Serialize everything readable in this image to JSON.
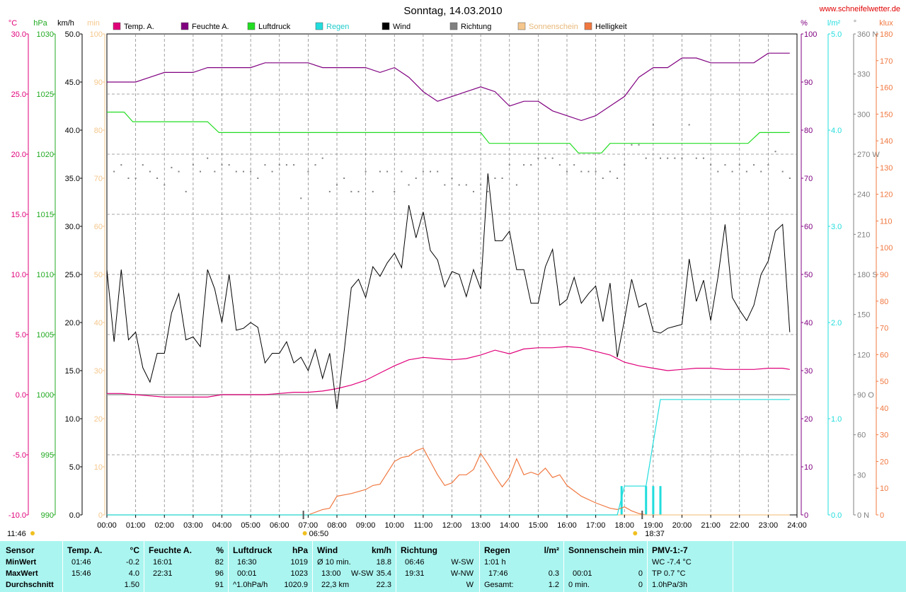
{
  "page": {
    "title": "Sonntag, 14.03.2010",
    "website": "www.schneifelwetter.de"
  },
  "legend": [
    {
      "label": "Temp. A.",
      "color": "#e0007a"
    },
    {
      "label": "Feuchte A.",
      "color": "#800080"
    },
    {
      "label": "Luftdruck",
      "color": "#22dd22"
    },
    {
      "label": "Regen",
      "color": "#22dddd"
    },
    {
      "label": "Wind",
      "color": "#000000"
    },
    {
      "label": "Richtung",
      "color": "#808080"
    },
    {
      "label": "Sonnenschein",
      "color": "#f5c78c"
    },
    {
      "label": "Helligkeit",
      "color": "#f07840"
    }
  ],
  "axes": {
    "temp": {
      "unit": "°C",
      "color": "#e0007a",
      "ticks": [
        "30.0",
        "25.0",
        "20.0",
        "15.0",
        "10.0",
        "5.0",
        "0.0",
        "-5.0",
        "-10.0"
      ]
    },
    "pressure": {
      "unit": "hPa",
      "color": "#22aa22",
      "ticks": [
        "1030",
        "1025",
        "1020",
        "1015",
        "1010",
        "1005",
        "1000",
        "995",
        "990"
      ]
    },
    "wind": {
      "unit": "km/h",
      "color": "#000000",
      "ticks": [
        "50.0",
        "45.0",
        "40.0",
        "35.0",
        "30.0",
        "25.0",
        "20.0",
        "15.0",
        "10.0",
        "5.0",
        "0.0"
      ]
    },
    "sunshine": {
      "unit": "min",
      "color": "#f5c78c",
      "ticks": [
        "100",
        "90",
        "80",
        "70",
        "60",
        "50",
        "40",
        "30",
        "20",
        "10",
        "0"
      ]
    },
    "humidity": {
      "unit": "%",
      "color": "#800080",
      "ticks": [
        "100",
        "90",
        "80",
        "70",
        "60",
        "50",
        "40",
        "30",
        "20",
        "10",
        "0"
      ]
    },
    "rain": {
      "unit": "l/m²",
      "color": "#22dddd",
      "ticks": [
        "5.0",
        "4.0",
        "3.0",
        "2.0",
        "1.0",
        "0.0"
      ]
    },
    "direction": {
      "unit": "°",
      "color": "#808080",
      "ticks": [
        "360 N",
        "330",
        "300",
        "270 W",
        "240",
        "210",
        "180 S",
        "150",
        "120",
        "90 O",
        "60",
        "30",
        "0 N"
      ]
    },
    "brightness": {
      "unit": "klux",
      "color": "#f07840",
      "ticks": [
        "180",
        "170",
        "160",
        "150",
        "140",
        "130",
        "120",
        "110",
        "100",
        "90",
        "80",
        "70",
        "60",
        "50",
        "40",
        "30",
        "20",
        "10",
        "0"
      ]
    }
  },
  "time_ticks": [
    "00:00",
    "01:00",
    "02:00",
    "03:00",
    "04:00",
    "05:00",
    "06:00",
    "07:00",
    "08:00",
    "09:00",
    "10:00",
    "11:00",
    "12:00",
    "13:00",
    "14:00",
    "15:00",
    "16:00",
    "17:00",
    "18:00",
    "19:00",
    "20:00",
    "21:00",
    "22:00",
    "23:00",
    "24:00"
  ],
  "sun_markers": {
    "sunrise": "06:50",
    "sunset": "18:37",
    "daylight": "11:46"
  },
  "chart_data": {
    "type": "line",
    "x_range": [
      "00:00",
      "24:00"
    ],
    "grid": true,
    "series": [
      {
        "name": "Temp. A.",
        "unit": "°C",
        "axis": "temp",
        "color": "#e0007a",
        "x": [
          0,
          0.5,
          1,
          1.5,
          2,
          2.5,
          3,
          3.5,
          4,
          4.5,
          5,
          5.5,
          6,
          6.5,
          7,
          7.5,
          8,
          8.5,
          9,
          9.5,
          10,
          10.5,
          11,
          11.5,
          12,
          12.5,
          13,
          13.5,
          14,
          14.5,
          15,
          15.5,
          16,
          16.5,
          17,
          17.5,
          18,
          18.5,
          19,
          19.5,
          20,
          20.5,
          21,
          21.5,
          22,
          22.5,
          23,
          23.5,
          23.75
        ],
        "y": [
          0.1,
          0.1,
          0,
          -0.1,
          -0.2,
          -0.2,
          -0.2,
          -0.2,
          0,
          0,
          0,
          0,
          0.1,
          0.2,
          0.2,
          0.3,
          0.5,
          0.8,
          1.2,
          1.8,
          2.4,
          2.9,
          3.1,
          3,
          2.9,
          3,
          3.3,
          3.7,
          3.4,
          3.8,
          3.9,
          3.9,
          4,
          3.9,
          3.6,
          3.3,
          2.7,
          2.4,
          2.2,
          2.0,
          2.1,
          2.2,
          2.2,
          2.1,
          2.1,
          2.1,
          2.2,
          2.2,
          2.1
        ]
      },
      {
        "name": "Feuchte A.",
        "unit": "%",
        "axis": "humidity",
        "color": "#800080",
        "x": [
          0,
          1,
          1.5,
          2,
          3,
          3.5,
          4,
          5,
          5.5,
          6,
          7,
          7.5,
          8,
          9,
          9.5,
          10,
          10.5,
          11,
          11.5,
          12,
          12.5,
          13,
          13.5,
          14,
          14.5,
          15,
          15.5,
          16,
          16.5,
          17,
          17.5,
          18,
          18.5,
          19,
          19.5,
          20,
          20.5,
          21,
          21.5,
          22,
          22.5,
          23,
          23.5,
          23.75
        ],
        "y": [
          90,
          90,
          91,
          92,
          92,
          93,
          93,
          93,
          94,
          94,
          94,
          93,
          93,
          93,
          92,
          93,
          91,
          88,
          86,
          87,
          88,
          89,
          88,
          85,
          86,
          86,
          84,
          83,
          82,
          83,
          85,
          87,
          91,
          93,
          93,
          95,
          95,
          94,
          94,
          94,
          94,
          96,
          96,
          96
        ]
      },
      {
        "name": "Luftdruck",
        "unit": "hPa",
        "axis": "pressure",
        "color": "#22dd22",
        "x": [
          0,
          0.6,
          0.9,
          3.5,
          3.9,
          13,
          13.3,
          15,
          16.1,
          16.4,
          17.2,
          17.5,
          22.3,
          22.7,
          23.75
        ],
        "y": [
          1023.5,
          1023.5,
          1022.7,
          1022.7,
          1021.8,
          1021.8,
          1020.9,
          1020.9,
          1020.9,
          1020.1,
          1020.1,
          1020.9,
          1020.9,
          1021.8,
          1021.8
        ]
      },
      {
        "name": "Wind",
        "unit": "km/h",
        "axis": "wind",
        "color": "#000000",
        "x": [
          0,
          0.25,
          0.5,
          0.75,
          1,
          1.25,
          1.5,
          1.75,
          2,
          2.25,
          2.5,
          2.75,
          3,
          3.25,
          3.5,
          3.75,
          4,
          4.25,
          4.5,
          4.75,
          5,
          5.25,
          5.5,
          5.75,
          6,
          6.25,
          6.5,
          6.75,
          7,
          7.25,
          7.5,
          7.75,
          8,
          8.25,
          8.5,
          8.75,
          9,
          9.25,
          9.5,
          9.75,
          10,
          10.25,
          10.5,
          10.75,
          11,
          11.25,
          11.5,
          11.75,
          12,
          12.25,
          12.5,
          12.75,
          13,
          13.25,
          13.5,
          13.75,
          14,
          14.25,
          14.5,
          14.75,
          15,
          15.25,
          15.5,
          15.75,
          16,
          16.25,
          16.5,
          16.75,
          17,
          17.25,
          17.5,
          17.75,
          18,
          18.25,
          18.5,
          18.75,
          19,
          19.25,
          19.5,
          19.75,
          20,
          20.25,
          20.5,
          20.75,
          21,
          21.25,
          21.5,
          21.75,
          22,
          22.25,
          22.5,
          22.75,
          23,
          23.25,
          23.5,
          23.75
        ],
        "y": [
          25.5,
          18,
          25.5,
          18.2,
          19,
          15.3,
          13.8,
          16.8,
          16.8,
          21,
          23,
          18.2,
          18.5,
          17.5,
          25.5,
          23.5,
          20,
          25,
          19.2,
          19.4,
          20,
          19.5,
          15.8,
          16.8,
          16.8,
          18,
          15.8,
          16.4,
          15,
          17.2,
          14.2,
          16.8,
          11,
          17,
          23.6,
          24.5,
          22.6,
          25.8,
          24.8,
          26.2,
          27.2,
          25.7,
          32.2,
          28.8,
          31.5,
          27.5,
          26.5,
          23.7,
          25.3,
          25,
          22.7,
          25.5,
          23.5,
          35.5,
          28.5,
          28.5,
          29.5,
          25.5,
          25.5,
          22,
          22,
          25.8,
          27.6,
          21.8,
          22.4,
          24.7,
          22,
          23,
          23.8,
          20.1,
          24.1,
          16.4,
          20.3,
          24.5,
          21.6,
          22,
          19.1,
          18.9,
          19.4,
          19.6,
          19.8,
          26.6,
          22.2,
          24.4,
          20.2,
          24.7,
          30.2,
          22.6,
          21.3,
          20.2,
          21.8,
          25,
          26.4,
          29.5,
          30.2,
          19
        ]
      },
      {
        "name": "Richtung",
        "unit": "°",
        "axis": "direction",
        "color": "#808080",
        "style": "dots",
        "x": [
          0.25,
          0.5,
          0.75,
          1,
          1.25,
          1.5,
          1.75,
          2,
          2.25,
          2.5,
          2.75,
          3,
          3.25,
          3.5,
          3.75,
          4,
          4.25,
          4.5,
          4.75,
          5,
          5.25,
          5.5,
          5.75,
          6,
          6.25,
          6.5,
          6.75,
          7,
          7.25,
          7.5,
          7.75,
          8,
          8.25,
          8.5,
          8.75,
          9,
          9.25,
          9.5,
          9.75,
          10,
          10.25,
          10.5,
          10.75,
          11,
          11.25,
          11.5,
          11.75,
          12,
          12.25,
          12.5,
          12.75,
          13,
          13.25,
          13.5,
          13.75,
          14,
          14.25,
          14.5,
          14.75,
          15,
          15.25,
          15.5,
          15.75,
          16,
          16.25,
          16.5,
          16.75,
          17,
          17.25,
          17.5,
          17.75,
          18,
          18.25,
          18.5,
          18.75,
          19,
          19.25,
          19.5,
          19.75,
          20,
          20.25,
          20.5,
          20.75,
          21,
          21.25,
          21.5,
          21.75,
          22,
          22.25,
          22.5,
          22.75,
          23,
          23.25,
          23.5,
          23.75
        ],
        "y": [
          257,
          262,
          252,
          252,
          262,
          257,
          252,
          247,
          260,
          257,
          242,
          262,
          257,
          267,
          257,
          262,
          262,
          257,
          257,
          257,
          252,
          262,
          257,
          262,
          262,
          262,
          237,
          257,
          262,
          267,
          242,
          247,
          252,
          242,
          242,
          257,
          242,
          257,
          257,
          242,
          257,
          247,
          252,
          257,
          257,
          257,
          247,
          252,
          247,
          247,
          242,
          247,
          242,
          252,
          252,
          262,
          247,
          262,
          262,
          267,
          267,
          267,
          262,
          257,
          262,
          257,
          257,
          257,
          252,
          257,
          252,
          262,
          277,
          277,
          267,
          292,
          267,
          267,
          267,
          267,
          292,
          267,
          267,
          262,
          257,
          262,
          257,
          262,
          257,
          262,
          257,
          262,
          272,
          257,
          252
        ]
      },
      {
        "name": "Regen",
        "unit": "l/m²",
        "axis": "rain",
        "color": "#22dddd",
        "x": [
          0,
          17.75,
          18,
          18.75,
          19.25,
          23.75
        ],
        "y": [
          0,
          0,
          0.3,
          0.3,
          1.2,
          1.2
        ]
      },
      {
        "name": "Helligkeit",
        "unit": "klux",
        "axis": "brightness",
        "color": "#f07840",
        "x": [
          7,
          7.5,
          7.75,
          8,
          8.25,
          8.5,
          9,
          9.25,
          9.5,
          10,
          10.25,
          10.5,
          10.75,
          11,
          11.25,
          11.5,
          11.75,
          12,
          12.25,
          12.5,
          12.75,
          13,
          13.25,
          13.5,
          13.75,
          14,
          14.25,
          14.5,
          14.75,
          15,
          15.25,
          15.5,
          15.75,
          16,
          16.5,
          17,
          17.5,
          17.75,
          18,
          18.25,
          18.5,
          18.75
        ],
        "y": [
          0,
          2,
          2.5,
          7,
          7.5,
          8,
          9.5,
          11,
          11.5,
          20,
          21.5,
          22,
          24,
          25,
          20,
          15,
          11,
          12,
          15,
          15,
          17,
          23,
          19,
          14.5,
          10.5,
          14,
          21,
          15,
          16,
          15,
          17.5,
          14,
          15,
          11,
          7,
          4.5,
          2.5,
          2,
          3,
          1.5,
          0.5,
          0
        ]
      },
      {
        "name": "Sonnenschein",
        "unit": "min",
        "axis": "sunshine",
        "color": "#f5c78c",
        "x": [
          0,
          23.75
        ],
        "y": [
          0,
          0
        ]
      }
    ],
    "rain_bars": {
      "x": [
        17.9,
        18.75,
        19,
        19.25
      ],
      "y": [
        0.3,
        0.3,
        0.3,
        0.3
      ]
    }
  },
  "stats": {
    "headers": {
      "sensor": "Sensor",
      "temp": "Temp. A.",
      "temp_unit": "°C",
      "hum": "Feuchte A.",
      "hum_unit": "%",
      "press": "Luftdruck",
      "press_unit": "hPa",
      "wind": "Wind",
      "wind_unit": "km/h",
      "dir": "Richtung",
      "rain": "Regen",
      "rain_unit": "l/m²",
      "sun": "Sonnenschein min",
      "pmv": "PMV-1:-7"
    },
    "rows": {
      "min": "MinWert",
      "max": "MaxWert",
      "avg": "Durchschnitt"
    },
    "temp": {
      "min_time": "01:46",
      "min": "-0.2",
      "max_time": "15:46",
      "max": "4.0",
      "avg": "1.50"
    },
    "hum": {
      "min_time": "16:01",
      "min": "82",
      "max_time": "22:31",
      "max": "96",
      "avg": "91"
    },
    "press": {
      "min_time": "16:30",
      "min": "1019",
      "max_time": "00:01",
      "max": "1023",
      "trend": "^1.0hPa/h",
      "avg": "1020.9"
    },
    "wind": {
      "r1_label": "Ø 10 min.",
      "r1": "18.8",
      "r2_time": "13:00",
      "r2_dir": "W-SW",
      "r2": "35.4",
      "r3_label": "22,3 km",
      "r3": "22.3"
    },
    "dir": {
      "r1_time": "06:46",
      "r1": "W-SW",
      "r2_time": "19:31",
      "r2": "W-NW",
      "r3": "W"
    },
    "rain": {
      "r1_label": "1:01 h",
      "r2_time": "17:46",
      "r2": "0.3",
      "r3_label": "Gesamt:",
      "r3": "1.2"
    },
    "sun": {
      "r2_time": "00:01",
      "r2": "0",
      "r3_label": "0 min.",
      "r3": "0"
    },
    "pmv": {
      "r1": "WC -7.4 °C",
      "r2": "TP 0.7 °C",
      "r3": "1.0hPa/3h"
    }
  }
}
